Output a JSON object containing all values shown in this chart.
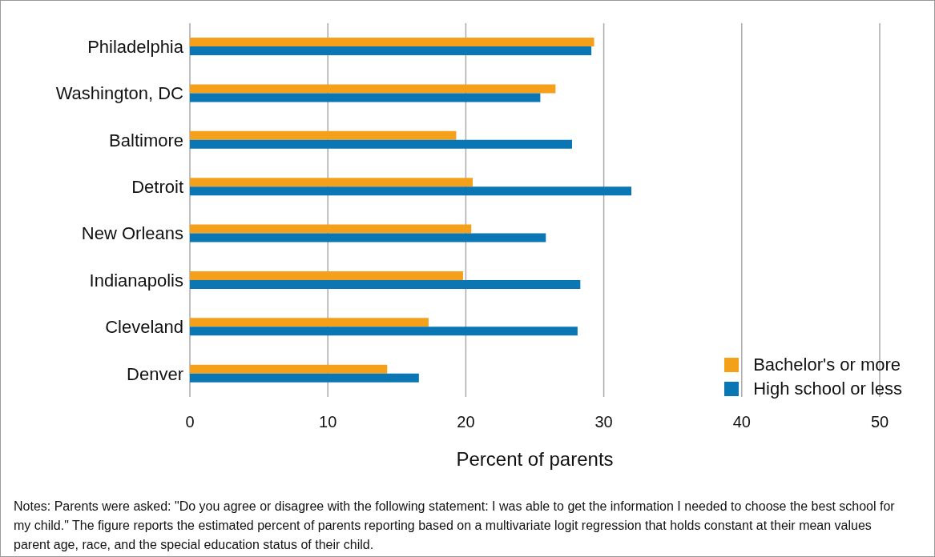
{
  "chart_data": {
    "type": "bar",
    "orientation": "horizontal",
    "xlabel": "Percent of parents",
    "categories": [
      "Philadelphia",
      "Washington, DC",
      "Baltimore",
      "Detroit",
      "New Orleans",
      "Indianapolis",
      "Cleveland",
      "Denver"
    ],
    "series": [
      {
        "name": "Bachelor's or more",
        "color": "#f5a01a",
        "values": [
          29.3,
          26.5,
          19.3,
          20.5,
          20.4,
          19.8,
          17.3,
          14.3
        ]
      },
      {
        "name": "High school or less",
        "color": "#0a76b4",
        "values": [
          29.1,
          25.4,
          27.7,
          32.0,
          25.8,
          28.3,
          28.1,
          16.6
        ]
      }
    ],
    "xlim": [
      0,
      50
    ],
    "xticks": [
      0,
      10,
      20,
      30,
      40,
      50
    ],
    "grid": "x",
    "legend": "bottom right",
    "annotations": [
      "Notes: Parents were asked: \"Do you agree or disagree with the following statement: I was able to get the information I needed to choose the best school for my child.\" The figure reports the estimated percent of parents reporting based on a multivariate logit regression that holds constant at their mean values parent age, race, and the special education status of their child."
    ]
  }
}
